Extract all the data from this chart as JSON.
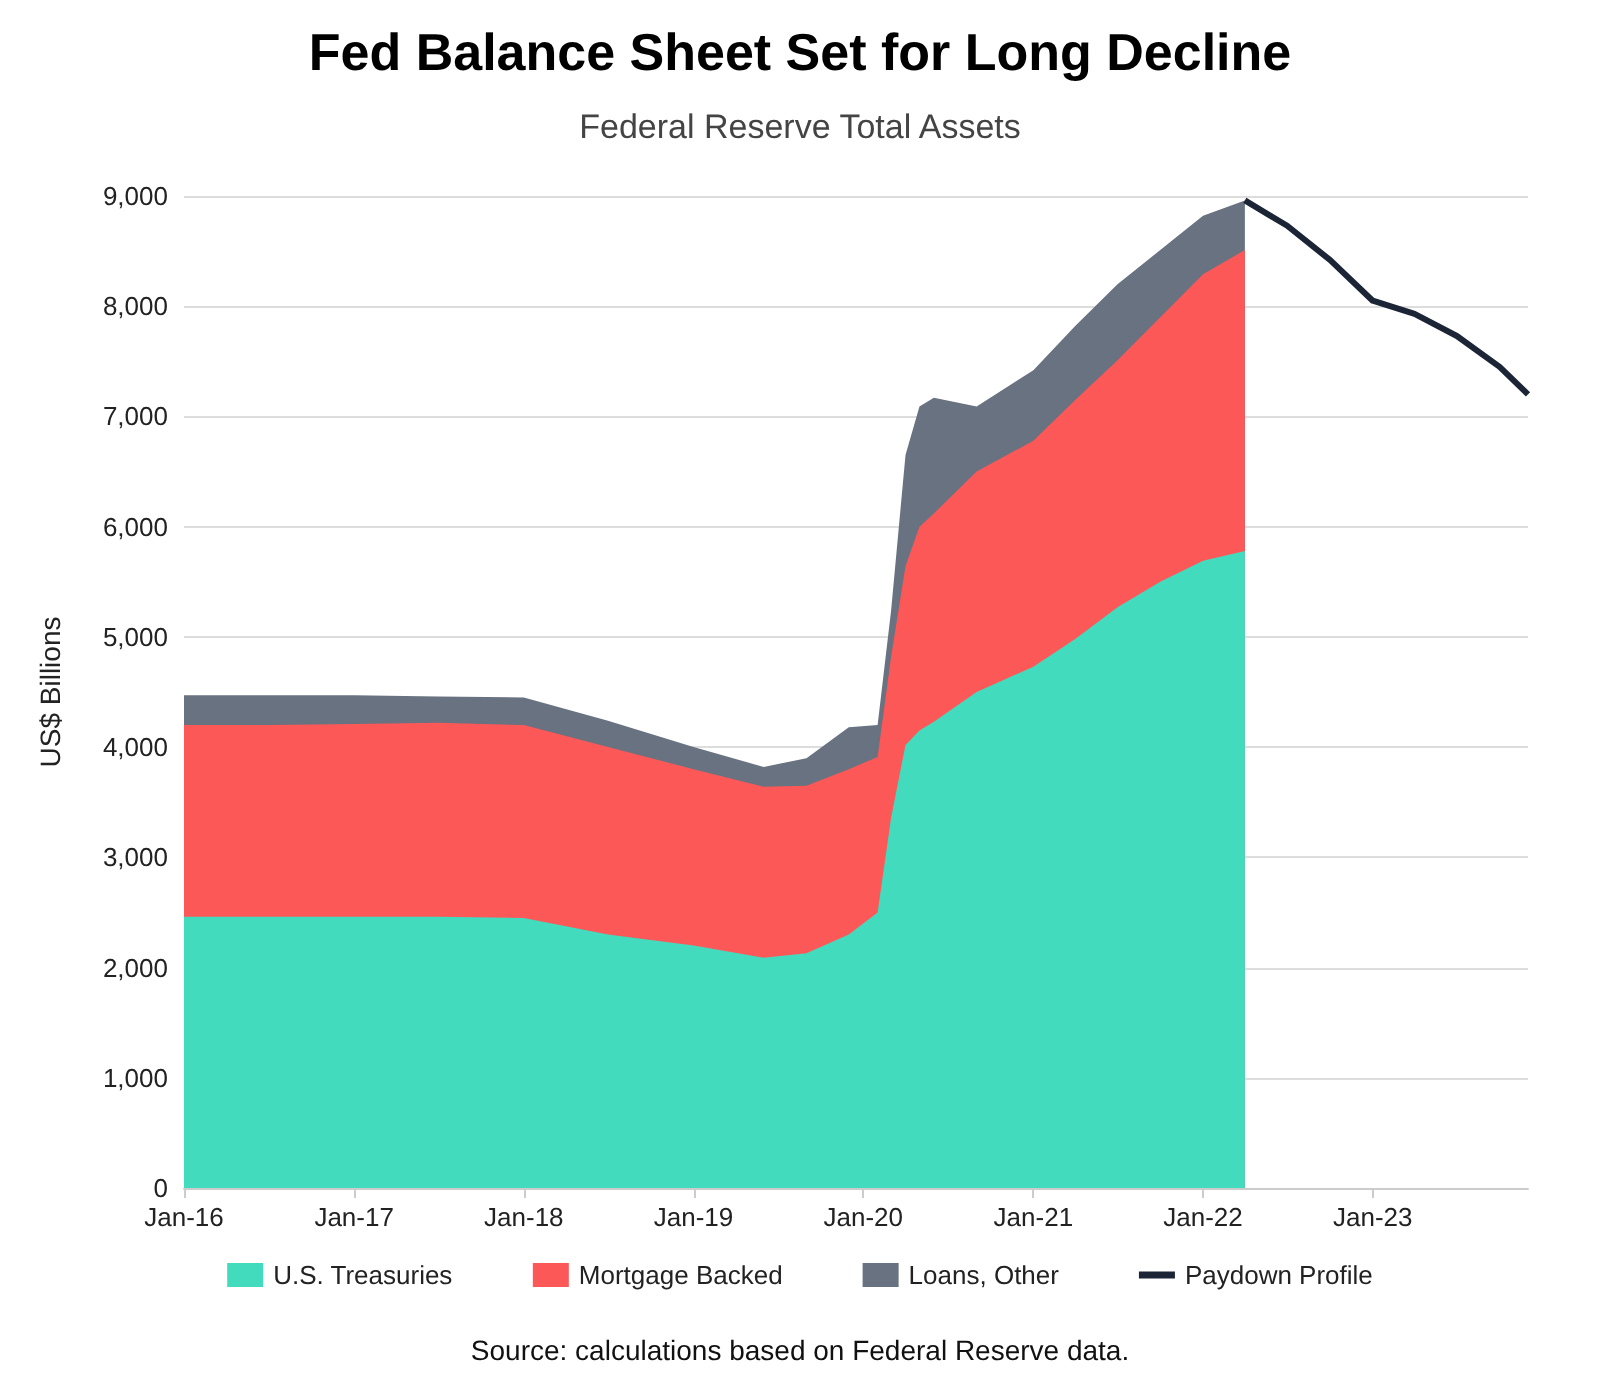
{
  "chart_data": {
    "type": "area",
    "title": "Fed Balance Sheet Set for Long Decline",
    "subtitle": "Federal Reserve Total Assets",
    "ylabel": "US$ Billions",
    "annotations": [
      "Source: calculations based on Federal Reserve data."
    ],
    "x": [
      "2016-01",
      "2016-07",
      "2017-01",
      "2017-07",
      "2018-01",
      "2018-07",
      "2019-01",
      "2019-06",
      "2019-09",
      "2019-12",
      "2020-02",
      "2020-03",
      "2020-04",
      "2020-05",
      "2020-06",
      "2020-09",
      "2021-01",
      "2021-04",
      "2021-07",
      "2021-10",
      "2022-01",
      "2022-04"
    ],
    "stacked": true,
    "marker": "none",
    "line_style": "solid",
    "grid": "y",
    "legend": "bottom",
    "xlim": [
      "2016-01",
      "2023-12"
    ],
    "xticks": [
      {
        "value": "2016-01",
        "label": "Jan-16"
      },
      {
        "value": "2017-01",
        "label": "Jan-17"
      },
      {
        "value": "2018-01",
        "label": "Jan-18"
      },
      {
        "value": "2019-01",
        "label": "Jan-19"
      },
      {
        "value": "2020-01",
        "label": "Jan-20"
      },
      {
        "value": "2021-01",
        "label": "Jan-21"
      },
      {
        "value": "2022-01",
        "label": "Jan-22"
      },
      {
        "value": "2023-01",
        "label": "Jan-23"
      }
    ],
    "ylim": [
      0,
      9000
    ],
    "yticks": [
      {
        "value": 0,
        "label": "0"
      },
      {
        "value": 1000,
        "label": "1,000"
      },
      {
        "value": 2000,
        "label": "2,000"
      },
      {
        "value": 3000,
        "label": "3,000"
      },
      {
        "value": 4000,
        "label": "4,000"
      },
      {
        "value": 5000,
        "label": "5,000"
      },
      {
        "value": 6000,
        "label": "6,000"
      },
      {
        "value": 7000,
        "label": "7,000"
      },
      {
        "value": 8000,
        "label": "8,000"
      },
      {
        "value": 9000,
        "label": "9,000"
      }
    ],
    "series": [
      {
        "name": "U.S. Treasuries",
        "color": "#43dbbe",
        "values": [
          2460,
          2460,
          2460,
          2460,
          2450,
          2300,
          2200,
          2090,
          2130,
          2300,
          2500,
          3360,
          4020,
          4150,
          4230,
          4500,
          4730,
          4980,
          5270,
          5500,
          5690,
          5780
        ]
      },
      {
        "name": "Mortgage Backed",
        "color": "#fc5858",
        "values": [
          1740,
          1740,
          1750,
          1760,
          1750,
          1700,
          1600,
          1550,
          1520,
          1500,
          1410,
          1460,
          1620,
          1850,
          1890,
          2000,
          2050,
          2170,
          2240,
          2400,
          2600,
          2730
        ]
      },
      {
        "name": "Loans, Other",
        "color": "#687280",
        "values": [
          270,
          270,
          260,
          240,
          250,
          240,
          200,
          180,
          250,
          380,
          290,
          420,
          1010,
          1090,
          1050,
          590,
          640,
          670,
          690,
          610,
          530,
          450
        ]
      },
      {
        "name": "Paydown Profile",
        "type": "line",
        "color": "#1c2536",
        "x": [
          "2022-04",
          "2022-07",
          "2022-10",
          "2023-01",
          "2023-04",
          "2023-07",
          "2023-10",
          "2023-12"
        ],
        "values": [
          8960,
          8730,
          8420,
          8050,
          7930,
          7730,
          7450,
          7200
        ]
      }
    ]
  }
}
